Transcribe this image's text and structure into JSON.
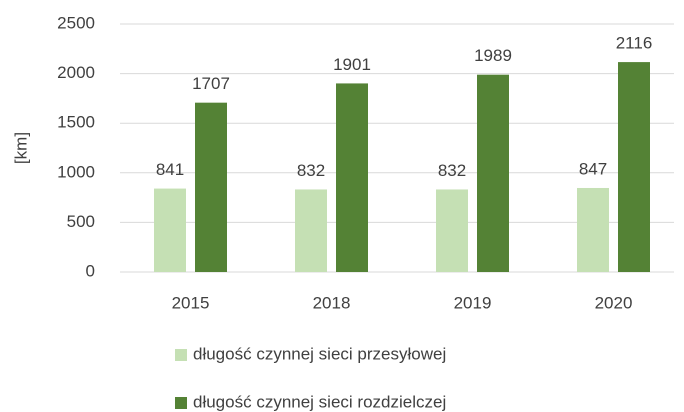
{
  "chart_data": {
    "type": "bar",
    "y_label": "[km]",
    "categories": [
      "2015",
      "2018",
      "2019",
      "2020"
    ],
    "series": [
      {
        "name": "długość czynnej sieci przesyłowej",
        "color": "#c5e0b4",
        "values": [
          841,
          832,
          832,
          847
        ]
      },
      {
        "name": "długość czynnej sieci rozdzielczej",
        "color": "#548235",
        "values": [
          1707,
          1901,
          1989,
          2116
        ]
      }
    ],
    "ylim": [
      0,
      2500
    ],
    "yticks": [
      0,
      500,
      1000,
      1500,
      2000,
      2500
    ],
    "grid": true,
    "legend": "bottom"
  }
}
